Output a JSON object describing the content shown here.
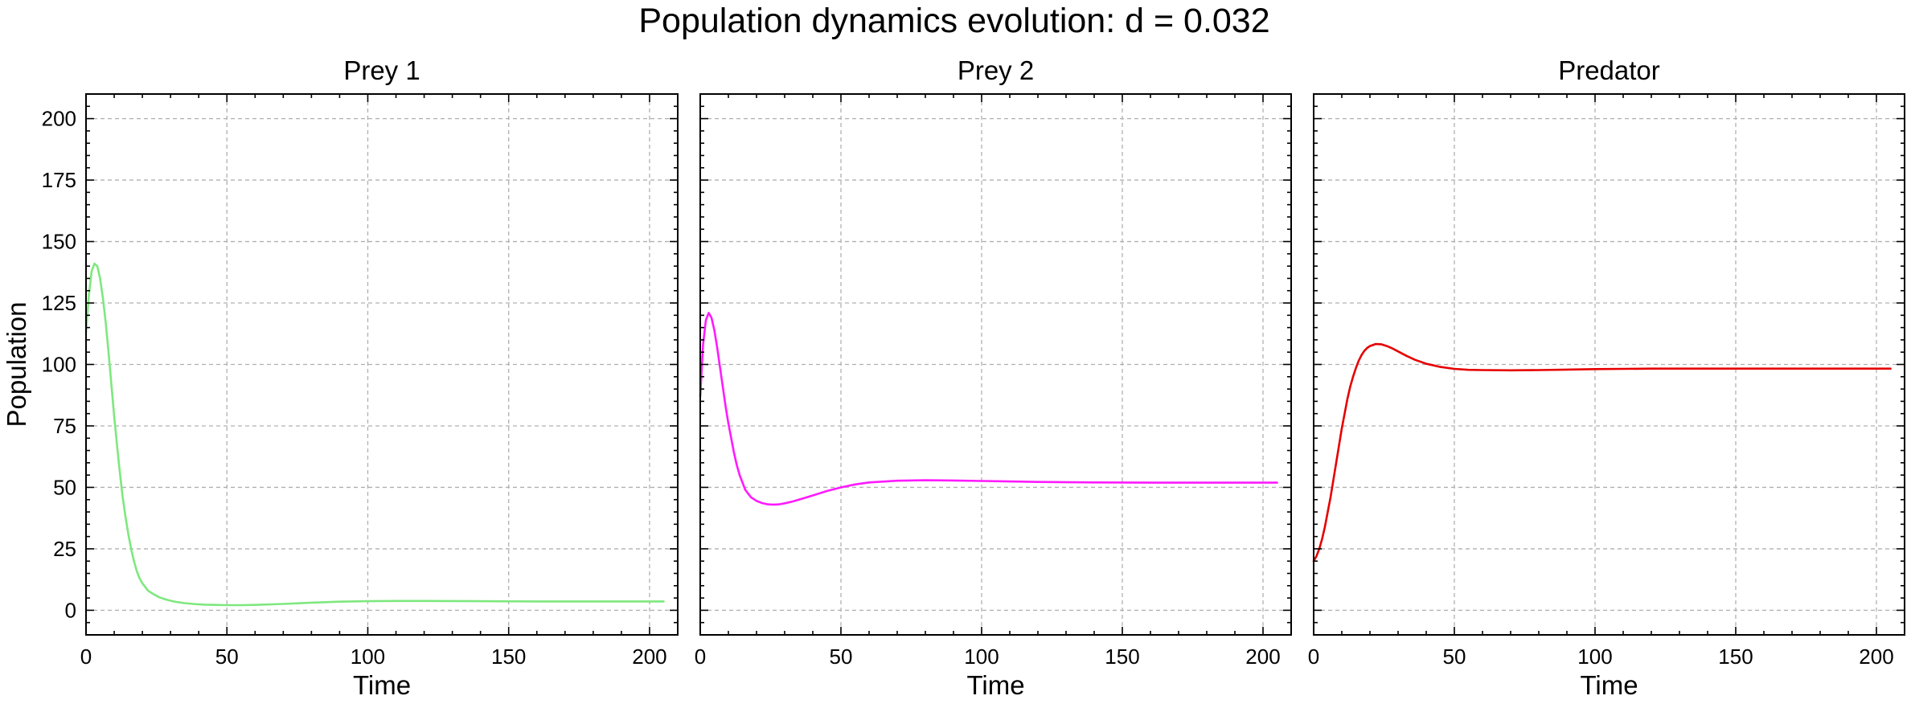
{
  "suptitle": "Population dynamics evolution: d = 0.032",
  "chart_data": [
    {
      "type": "line",
      "title": "Prey 1",
      "xlabel": "Time",
      "ylabel": "Population",
      "xlim": [
        0,
        210
      ],
      "ylim": [
        -10,
        210
      ],
      "xticks": [
        0,
        50,
        100,
        150,
        200
      ],
      "yticks": [
        0,
        25,
        50,
        75,
        100,
        125,
        150,
        175,
        200
      ],
      "grid": true,
      "series": [
        {
          "color": "#7ee87e",
          "x": [
            0,
            1,
            2,
            3,
            4,
            5,
            6,
            7,
            8,
            9,
            10,
            11,
            12,
            13,
            14,
            15,
            16,
            17,
            18,
            19,
            20,
            22,
            24,
            26,
            28,
            30,
            32,
            35,
            38,
            42,
            46,
            50,
            55,
            60,
            70,
            80,
            90,
            100,
            110,
            120,
            140,
            160,
            180,
            205
          ],
          "y": [
            113,
            128,
            138,
            141,
            140,
            135,
            127,
            117,
            105,
            92,
            79,
            67,
            56,
            46,
            38,
            31,
            25,
            20,
            16,
            13,
            11,
            8,
            6.5,
            5.3,
            4.5,
            3.9,
            3.4,
            2.9,
            2.6,
            2.3,
            2.2,
            2.1,
            2.1,
            2.2,
            2.6,
            3.1,
            3.5,
            3.7,
            3.8,
            3.8,
            3.7,
            3.6,
            3.6,
            3.6
          ]
        }
      ]
    },
    {
      "type": "line",
      "title": "Prey 2",
      "xlabel": "Time",
      "ylabel": "",
      "xlim": [
        0,
        210
      ],
      "ylim": [
        -10,
        210
      ],
      "xticks": [
        0,
        50,
        100,
        150,
        200
      ],
      "yticks": [
        0,
        25,
        50,
        75,
        100,
        125,
        150,
        175,
        200
      ],
      "grid": true,
      "series": [
        {
          "color": "#ff1aff",
          "x": [
            0,
            1,
            2,
            3,
            4,
            5,
            6,
            7,
            8,
            9,
            10,
            11,
            12,
            13,
            14,
            15,
            16,
            18,
            20,
            22,
            24,
            26,
            28,
            30,
            33,
            36,
            40,
            45,
            50,
            55,
            60,
            70,
            80,
            90,
            100,
            110,
            120,
            140,
            160,
            180,
            205
          ],
          "y": [
            87,
            108,
            118,
            121,
            119,
            114,
            107,
            99,
            91,
            83,
            76,
            70,
            64,
            59,
            55,
            52,
            49,
            46,
            44.5,
            43.6,
            43.1,
            43,
            43.1,
            43.5,
            44.3,
            45.3,
            46.7,
            48.5,
            50,
            51.2,
            52,
            52.7,
            52.9,
            52.8,
            52.6,
            52.4,
            52.2,
            52,
            51.9,
            51.9,
            51.9
          ]
        }
      ]
    },
    {
      "type": "line",
      "title": "Predator",
      "xlabel": "Time",
      "ylabel": "",
      "xlim": [
        0,
        210
      ],
      "ylim": [
        -10,
        210
      ],
      "xticks": [
        0,
        50,
        100,
        150,
        200
      ],
      "yticks": [
        0,
        25,
        50,
        75,
        100,
        125,
        150,
        175,
        200
      ],
      "grid": true,
      "series": [
        {
          "color": "#e60000",
          "x": [
            0,
            1,
            2,
            3,
            4,
            5,
            6,
            7,
            8,
            9,
            10,
            11,
            12,
            13,
            14,
            15,
            16,
            17,
            18,
            19,
            20,
            22,
            24,
            26,
            28,
            30,
            33,
            36,
            40,
            45,
            50,
            55,
            60,
            70,
            80,
            90,
            100,
            110,
            120,
            140,
            160,
            180,
            205
          ],
          "y": [
            20,
            22,
            25,
            29,
            34,
            40,
            46,
            53,
            60,
            67,
            74,
            80,
            86,
            91,
            95,
            98.5,
            101.5,
            103.8,
            105.5,
            106.7,
            107.5,
            108.3,
            108.2,
            107.5,
            106.5,
            105.3,
            103.5,
            101.9,
            100.3,
            99,
            98.2,
            97.8,
            97.7,
            97.6,
            97.7,
            97.9,
            98.1,
            98.2,
            98.3,
            98.3,
            98.3,
            98.3,
            98.3
          ]
        }
      ]
    }
  ]
}
